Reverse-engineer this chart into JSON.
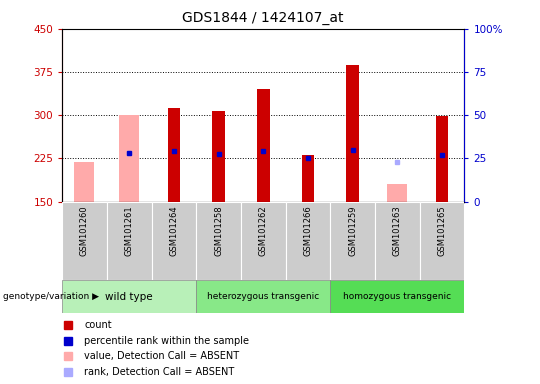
{
  "title": "GDS1844 / 1424107_at",
  "samples": [
    "GSM101260",
    "GSM101261",
    "GSM101264",
    "GSM101258",
    "GSM101262",
    "GSM101266",
    "GSM101259",
    "GSM101263",
    "GSM101265"
  ],
  "groups": [
    {
      "name": "wild type",
      "indices": [
        0,
        1,
        2
      ],
      "color": "#b8f0b8"
    },
    {
      "name": "heterozygous transgenic",
      "indices": [
        3,
        4,
        5
      ],
      "color": "#88e888"
    },
    {
      "name": "homozygous transgenic",
      "indices": [
        6,
        7,
        8
      ],
      "color": "#55dd55"
    }
  ],
  "ylim": [
    150,
    450
  ],
  "yticks": [
    150,
    225,
    300,
    375,
    450
  ],
  "ytick_labels": [
    "150",
    "225",
    "300",
    "375",
    "450"
  ],
  "right_yticks": [
    0,
    25,
    50,
    75,
    100
  ],
  "right_ytick_labels": [
    "0",
    "25",
    "50",
    "75",
    "100%"
  ],
  "count_values": [
    null,
    null,
    312,
    307,
    345,
    231,
    388,
    null,
    298
  ],
  "count_bottom": [
    150,
    150,
    150,
    150,
    150,
    150,
    150,
    150,
    150
  ],
  "rank_values": [
    null,
    235,
    237,
    233,
    238,
    226,
    240,
    null,
    231
  ],
  "absent_value_values": [
    218,
    300,
    null,
    null,
    null,
    null,
    null,
    180,
    null
  ],
  "absent_value_bottom": [
    150,
    150,
    null,
    null,
    null,
    null,
    null,
    150,
    null
  ],
  "absent_rank_values": [
    null,
    235,
    null,
    null,
    null,
    null,
    null,
    218,
    null
  ],
  "count_color": "#cc0000",
  "rank_color": "#0000cc",
  "absent_value_color": "#ffaaaa",
  "absent_rank_color": "#aaaaff",
  "left_axis_color": "#cc0000",
  "right_axis_color": "#0000cc",
  "bar_width": 0.28,
  "tick_bg_color": "#cccccc",
  "plot_bg": "#ffffff",
  "legend_items": [
    {
      "label": "count",
      "color": "#cc0000"
    },
    {
      "label": "percentile rank within the sample",
      "color": "#0000cc"
    },
    {
      "label": "value, Detection Call = ABSENT",
      "color": "#ffaaaa"
    },
    {
      "label": "rank, Detection Call = ABSENT",
      "color": "#aaaaff"
    }
  ]
}
